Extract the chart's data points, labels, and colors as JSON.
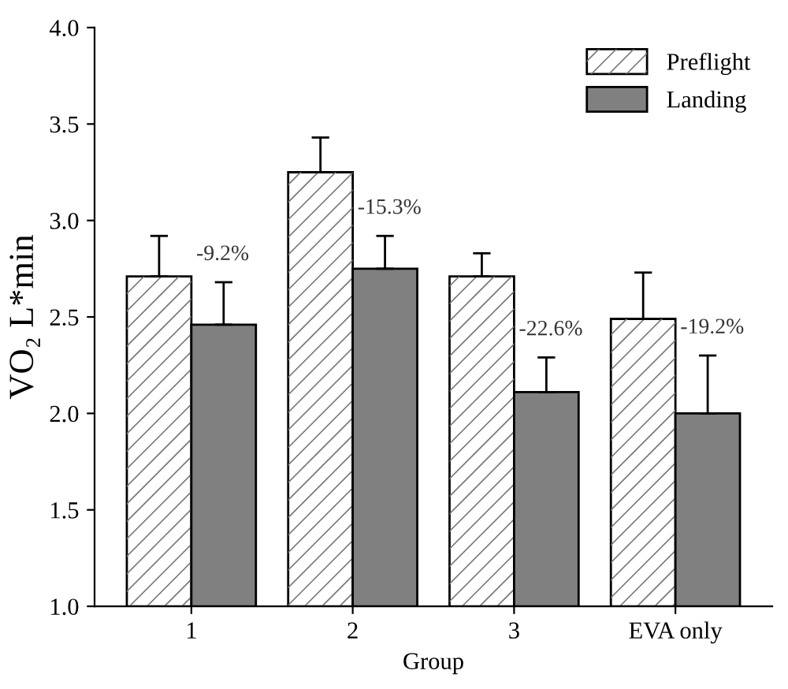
{
  "chart_data": {
    "type": "bar",
    "xlabel": "Group",
    "ylabel": "VO₂ L*min",
    "categories": [
      "1",
      "2",
      "3",
      "EVA only"
    ],
    "series": [
      {
        "name": "Preflight",
        "color": "#ffffff",
        "values": [
          2.71,
          3.25,
          2.71,
          2.49
        ],
        "errors": [
          0.21,
          0.18,
          0.12,
          0.24
        ]
      },
      {
        "name": "Landing",
        "color": "#808080",
        "values": [
          2.46,
          2.75,
          2.11,
          2.0
        ],
        "errors": [
          0.22,
          0.17,
          0.18,
          0.3
        ]
      }
    ],
    "annotations": [
      "-9.2%",
      "-15.3%",
      "-22.6%",
      "-19.2%"
    ],
    "ylim": [
      1.0,
      4.0
    ],
    "yticks": [
      {
        "value": 1,
        "label": "1.0"
      },
      1.5,
      {
        "value": 2,
        "label": "2.0"
      },
      2.5,
      {
        "value": 3,
        "label": "3.0"
      },
      3.5,
      {
        "value": 4,
        "label": "4.0"
      }
    ],
    "grid": false,
    "legend": "top right"
  }
}
